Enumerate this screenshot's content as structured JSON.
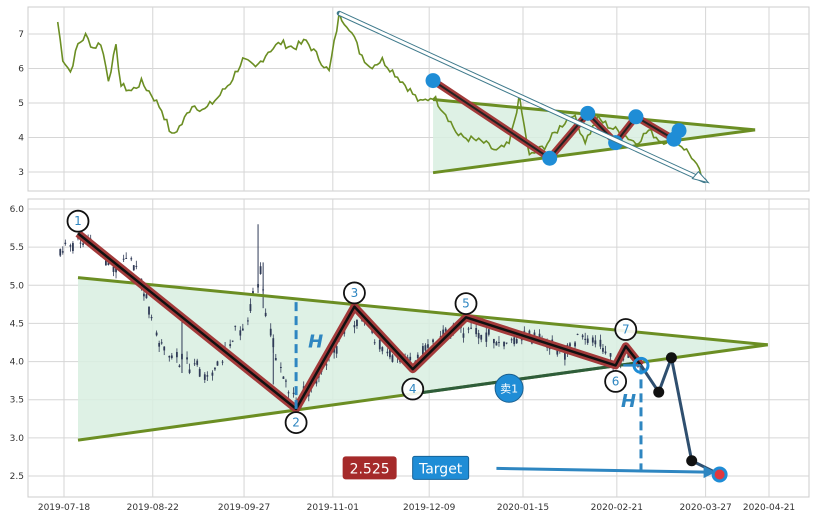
{
  "chart_data": [
    {
      "type": "line",
      "panel": "overview",
      "ylim": [
        2.6,
        7.8
      ],
      "y_ticks": [
        "3",
        "4",
        "5",
        "6",
        "7"
      ],
      "grid": true,
      "colors": {
        "line": "#6b8e23",
        "marker": "#1f8dd6",
        "zigzag": "#a33a3a",
        "wedge_fill": "#d8efe0",
        "wedge_line": "#6b8e23",
        "arrow": "#3f7a8c"
      },
      "price_path": [
        [
          "2019-07-10",
          7.35
        ],
        [
          "2019-07-12",
          6.3
        ],
        [
          "2019-07-15",
          5.9
        ],
        [
          "2019-07-18",
          6.7
        ],
        [
          "2019-07-21",
          6.95
        ],
        [
          "2019-07-24",
          6.6
        ],
        [
          "2019-07-27",
          6.75
        ],
        [
          "2019-07-30",
          5.7
        ],
        [
          "2019-08-02",
          6.6
        ],
        [
          "2019-08-04",
          5.5
        ],
        [
          "2019-08-08",
          5.35
        ],
        [
          "2019-08-12",
          5.6
        ],
        [
          "2019-08-16",
          5.25
        ],
        [
          "2019-08-20",
          4.8
        ],
        [
          "2019-08-24",
          4.05
        ],
        [
          "2019-08-28",
          4.4
        ],
        [
          "2019-09-01",
          4.95
        ],
        [
          "2019-09-06",
          4.8
        ],
        [
          "2019-09-11",
          5.15
        ],
        [
          "2019-09-16",
          5.6
        ],
        [
          "2019-09-21",
          6.25
        ],
        [
          "2019-09-26",
          6.0
        ],
        [
          "2019-10-01",
          6.5
        ],
        [
          "2019-10-06",
          6.75
        ],
        [
          "2019-10-11",
          6.6
        ],
        [
          "2019-10-16",
          6.8
        ],
        [
          "2019-10-20",
          6.4
        ],
        [
          "2019-10-25",
          5.9
        ],
        [
          "2019-10-29",
          7.55
        ],
        [
          "2019-11-02",
          7.2
        ],
        [
          "2019-11-06",
          6.5
        ],
        [
          "2019-11-10",
          6.05
        ],
        [
          "2019-11-15",
          6.25
        ],
        [
          "2019-11-20",
          5.85
        ],
        [
          "2019-11-25",
          5.45
        ],
        [
          "2019-11-30",
          5.0
        ],
        [
          "2019-12-05",
          5.2
        ],
        [
          "2019-12-10",
          4.7
        ],
        [
          "2019-12-15",
          4.05
        ],
        [
          "2019-12-20",
          3.95
        ],
        [
          "2019-12-25",
          3.85
        ],
        [
          "2019-12-30",
          3.6
        ],
        [
          "2020-01-04",
          3.8
        ],
        [
          "2020-01-08",
          5.15
        ],
        [
          "2020-01-12",
          3.45
        ],
        [
          "2020-01-18",
          3.75
        ],
        [
          "2020-01-24",
          4.3
        ],
        [
          "2020-01-29",
          4.7
        ],
        [
          "2020-02-03",
          3.9
        ],
        [
          "2020-02-08",
          4.55
        ],
        [
          "2020-02-13",
          4.3
        ],
        [
          "2020-02-18",
          4.1
        ],
        [
          "2020-02-23",
          3.85
        ],
        [
          "2020-02-28",
          4.2
        ],
        [
          "2020-03-04",
          3.9
        ],
        [
          "2020-03-09",
          3.95
        ],
        [
          "2020-03-13",
          3.7
        ],
        [
          "2020-03-16",
          3.45
        ],
        [
          "2020-03-19",
          3.0
        ],
        [
          "2020-03-21",
          2.7
        ]
      ],
      "zigzag_points": [
        [
          "2019-12-05",
          5.65
        ],
        [
          "2020-01-20",
          3.4
        ],
        [
          "2020-02-04",
          4.7
        ],
        [
          "2020-02-15",
          3.85
        ],
        [
          "2020-02-23",
          4.6
        ],
        [
          "2020-03-09",
          3.95
        ],
        [
          "2020-03-11",
          4.2
        ]
      ],
      "wedge": {
        "upper": [
          [
            "2019-12-05",
            5.1
          ],
          [
            "2020-04-10",
            4.22
          ]
        ],
        "lower": [
          [
            "2019-12-05",
            2.98
          ],
          [
            "2020-04-10",
            4.22
          ]
        ]
      },
      "arrow": {
        "from": [
          "2019-10-29",
          7.6
        ],
        "to": [
          "2020-03-21",
          2.75
        ]
      }
    },
    {
      "type": "candlestick",
      "panel": "detail",
      "ylim": [
        2.25,
        6.1
      ],
      "y_ticks": [
        "2.5",
        "3.0",
        "3.5",
        "4.0",
        "4.5",
        "5.0",
        "5.5",
        "6.0"
      ],
      "x_ticks": [
        "2019-07-18",
        "2019-08-22",
        "2019-09-27",
        "2019-11-01",
        "2019-12-09",
        "2020-01-15",
        "2020-02-21",
        "2020-03-27",
        "2020-04-21"
      ],
      "grid": true,
      "colors": {
        "candle": "#2f3a56",
        "zigzag_outer": "#a33a3a",
        "zigzag_inner": "#111111",
        "wedge_fill": "#d8efe0",
        "wedge_line": "#6b8e23",
        "lower_line_dark": "#2e5d3a",
        "guide": "#2e86c1",
        "badge_red": "#a52a2a",
        "badge_blue": "#1f8dd6",
        "forecast": "#111111",
        "forecast_end": "#e0393e"
      },
      "candles": [],
      "pivots": [
        {
          "label": "1",
          "date": "2019-07-18",
          "value": 5.68,
          "label_value": 5.84
        },
        {
          "label": "2",
          "date": "2019-10-12",
          "value": 3.38,
          "label_value": 3.2
        },
        {
          "label": "3",
          "date": "2019-11-04",
          "value": 4.72,
          "label_value": 4.9
        },
        {
          "label": "4",
          "date": "2019-11-27",
          "value": 3.9,
          "label_value": 3.64
        },
        {
          "label": "5",
          "date": "2019-12-18",
          "value": 4.58,
          "label_value": 4.76
        },
        {
          "label": "6",
          "date": "2020-02-15",
          "value": 3.95,
          "label_value": 3.74
        },
        {
          "label": "7",
          "date": "2020-02-19",
          "value": 4.2,
          "label_value": 4.42
        },
        {
          "label": "",
          "date": "2020-02-25",
          "value": 3.95,
          "label_value": null
        }
      ],
      "wedge": {
        "upper": [
          [
            "2019-07-18",
            5.1
          ],
          [
            "2020-04-15",
            4.22
          ]
        ],
        "lower": [
          [
            "2019-07-18",
            2.97
          ],
          [
            "2020-04-15",
            4.22
          ]
        ]
      },
      "height_markers": [
        {
          "label": "H",
          "date": "2019-10-12",
          "top": 4.78,
          "bottom": 3.38
        },
        {
          "label": "H",
          "date": "2020-02-25",
          "top": 3.95,
          "bottom": 2.55
        }
      ],
      "forecast_points": [
        [
          "2020-02-25",
          3.95
        ],
        [
          "2020-03-03",
          3.6
        ],
        [
          "2020-03-08",
          4.05
        ],
        [
          "2020-03-16",
          2.7
        ],
        [
          "2020-03-27",
          2.52
        ]
      ],
      "sell_marker": {
        "label": "卖1",
        "date": "2020-01-04",
        "value": 3.65
      },
      "price_badge": {
        "label": "2.525",
        "date": "2019-11-10",
        "value": 2.6
      },
      "target_badge": {
        "label": "Target",
        "date": "2019-12-08",
        "value": 2.6
      },
      "target_arrow": {
        "from": [
          "2019-12-30",
          2.6
        ],
        "to": [
          "2020-03-27",
          2.55
        ]
      }
    }
  ]
}
